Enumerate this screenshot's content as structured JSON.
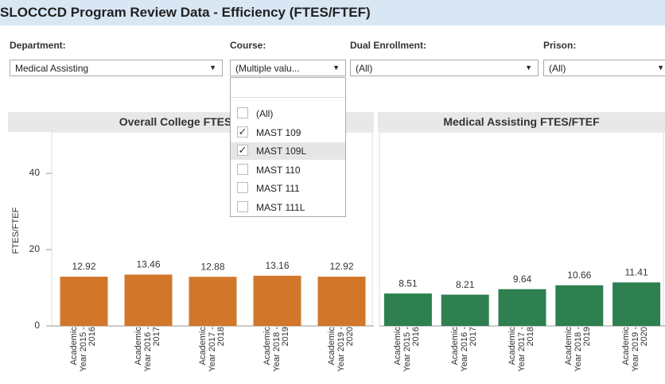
{
  "title": "SLOCCCD Program Review Data - Efficiency (FTES/FTEF)",
  "filters": [
    {
      "label": "Department:",
      "value": "Medical Assisting"
    },
    {
      "label": "Course:",
      "value": "(Multiple valu..."
    },
    {
      "label": "Dual Enrollment:",
      "value": "(All)"
    },
    {
      "label": "Prison:",
      "value": "(All)"
    }
  ],
  "course_options": [
    {
      "label": "(All)",
      "checked": false
    },
    {
      "label": "MAST 109",
      "checked": true
    },
    {
      "label": "MAST 109L",
      "checked": true
    },
    {
      "label": "MAST 110",
      "checked": false
    },
    {
      "label": "MAST 111",
      "checked": false
    },
    {
      "label": "MAST 111L",
      "checked": false
    }
  ],
  "chart_data": [
    {
      "type": "bar",
      "title": "Overall College FTES/FTEF",
      "y_label": "FTES/FTEF",
      "categories": [
        "Academic Year 2015 - 2016",
        "Academic Year 2016 - 2017",
        "Academic Year 2017 - 2018",
        "Academic Year 2018 - 2019",
        "Academic Year 2019 - 2020"
      ],
      "values": [
        12.92,
        13.46,
        12.88,
        13.16,
        12.92
      ],
      "color": "#d2772a",
      "ylim": [
        0,
        50
      ],
      "yticks": [
        0,
        20,
        40
      ]
    },
    {
      "type": "bar",
      "title": "Medical Assisting FTES/FTEF",
      "categories": [
        "Academic Year 2015 - 2016",
        "Academic Year 2016 - 2017",
        "Academic Year 2017 - 2018",
        "Academic Year 2018 - 2019",
        "Academic Year 2019 - 2020"
      ],
      "values": [
        8.51,
        8.21,
        9.64,
        10.66,
        11.41
      ],
      "color": "#2e8050",
      "ylim": [
        0,
        50
      ]
    }
  ]
}
